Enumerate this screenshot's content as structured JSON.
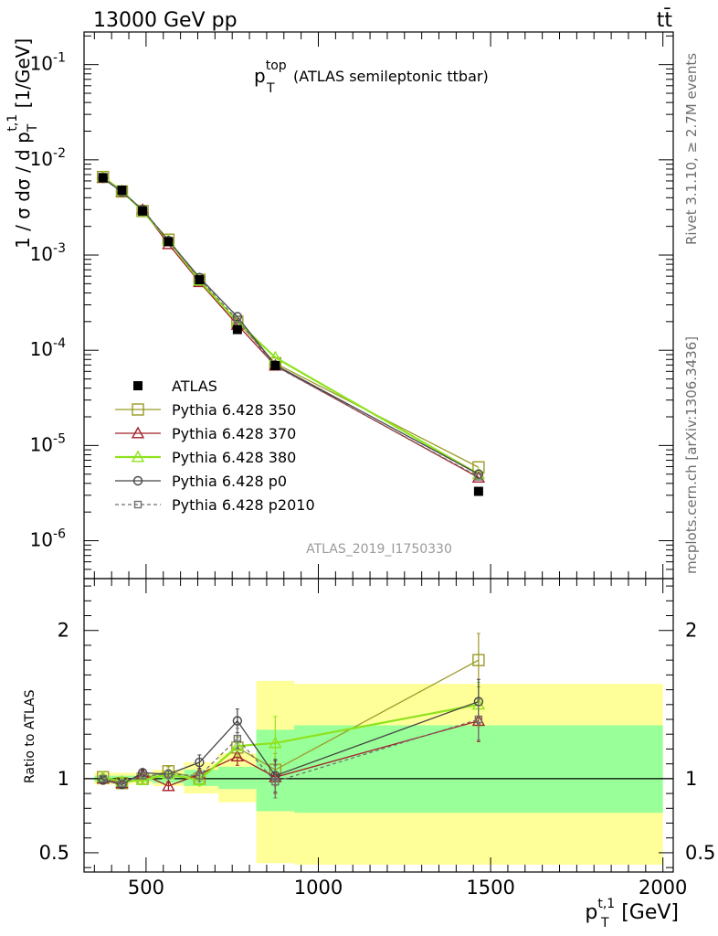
{
  "header": {
    "left": "13000 GeV pp",
    "right": "tt̄"
  },
  "side_labels": {
    "rivet": "Rivet 3.1.10, ≥ 2.7M events",
    "mcplots": "mcplots.cern.ch [arXiv:1306.3436]"
  },
  "watermark": "ATLAS_2019_I1750330",
  "colors": {
    "atlas": "#000000",
    "p350": "#9a9a24",
    "p370": "#a3202a",
    "p380": "#8fe21e",
    "p0": "#444444",
    "p2010": "#6e6e6e",
    "band_total": "#ffff99",
    "band_stat": "#99ff99"
  },
  "chart_data": [
    {
      "type": "scatter",
      "title_main": "p",
      "title_sup": "top",
      "title_sub": "T",
      "title_rest": "(ATLAS semileptonic ttbar)",
      "ylabel": "1 / σ dσ / d p_T^{t,1} [1/GeV]",
      "yscale": "log",
      "ylim": [
        4e-07,
        0.22
      ],
      "xlim": [
        320,
        2030
      ],
      "y_tick_labels": [
        "10^-6",
        "10^-5",
        "10^-4",
        "10^-3",
        "10^-2",
        "10^-1"
      ],
      "legend_position": "lower-left",
      "series": [
        {
          "name": "ATLAS",
          "marker": "square-filled",
          "x": [
            375,
            430,
            490,
            565,
            655,
            765,
            875,
            1465
          ],
          "values": [
            0.0065,
            0.0048,
            0.0029,
            0.00138,
            0.00055,
            0.000165,
            6.9e-05,
            3.3e-06
          ]
        },
        {
          "name": "Pythia 6.428 350",
          "marker": "square-open",
          "x": [
            375,
            430,
            490,
            565,
            655,
            765,
            875,
            1465
          ],
          "values": [
            0.0066,
            0.00465,
            0.0029,
            0.00145,
            0.00055,
            0.0002,
            7.3e-05,
            5.9e-06
          ]
        },
        {
          "name": "Pythia 6.428 370",
          "marker": "triangle-open",
          "x": [
            375,
            430,
            490,
            565,
            655,
            765,
            875,
            1465
          ],
          "values": [
            0.0065,
            0.00465,
            0.00298,
            0.0013,
            0.00052,
            0.000185,
            6.9e-05,
            4.6e-06
          ]
        },
        {
          "name": "Pythia 6.428 380",
          "marker": "triangle-open",
          "x": [
            375,
            430,
            490,
            565,
            655,
            765,
            875,
            1465
          ],
          "values": [
            0.0066,
            0.0047,
            0.0029,
            0.00142,
            0.00054,
            0.0002,
            8.4e-05,
            5e-06
          ]
        },
        {
          "name": "Pythia 6.428 p0",
          "marker": "circle-open",
          "x": [
            375,
            430,
            490,
            565,
            655,
            765,
            875,
            1465
          ],
          "values": [
            0.0064,
            0.0046,
            0.003,
            0.00142,
            0.00058,
            0.000225,
            7e-05,
            5e-06
          ]
        },
        {
          "name": "Pythia 6.428 p2010",
          "marker": "square-open-dashed",
          "x": [
            375,
            430,
            490,
            565,
            655,
            765,
            875,
            1465
          ],
          "values": [
            0.0065,
            0.00465,
            0.00296,
            0.00142,
            0.00056,
            0.00021,
            6.8e-05,
            4.7e-06
          ]
        }
      ]
    },
    {
      "type": "line",
      "ylabel": "Ratio to ATLAS",
      "xlabel_main": "p",
      "xlabel_sup": "t,1",
      "xlabel_sub": "T",
      "xlabel_unit": "[GeV]",
      "xlim": [
        320,
        2030
      ],
      "ylim": [
        0.37,
        2.35
      ],
      "reference_line": 1,
      "x_ticks": [
        500,
        1000,
        1500,
        2000
      ],
      "y_ticks": [
        0.5,
        1,
        2
      ],
      "uncertainty_bands": [
        {
          "x_edges": [
            350,
            400
          ],
          "total": [
            0.96,
            1.04
          ],
          "stat": [
            0.98,
            1.02
          ]
        },
        {
          "x_edges": [
            400,
            460
          ],
          "total": [
            0.96,
            1.04
          ],
          "stat": [
            0.98,
            1.02
          ]
        },
        {
          "x_edges": [
            460,
            520
          ],
          "total": [
            0.97,
            1.04
          ],
          "stat": [
            0.98,
            1.02
          ]
        },
        {
          "x_edges": [
            520,
            610
          ],
          "total": [
            0.95,
            1.06
          ],
          "stat": [
            0.97,
            1.03
          ]
        },
        {
          "x_edges": [
            610,
            710
          ],
          "total": [
            0.9,
            1.11
          ],
          "stat": [
            0.95,
            1.06
          ]
        },
        {
          "x_edges": [
            710,
            820
          ],
          "total": [
            0.84,
            1.17
          ],
          "stat": [
            0.93,
            1.08
          ]
        },
        {
          "x_edges": [
            820,
            930
          ],
          "total": [
            0.43,
            1.66
          ],
          "stat": [
            0.78,
            1.33
          ]
        },
        {
          "x_edges": [
            930,
            2000
          ],
          "total": [
            0.42,
            1.64
          ],
          "stat": [
            0.77,
            1.36
          ]
        }
      ],
      "series": [
        {
          "name": "Pythia 6.428 350",
          "x": [
            375,
            430,
            490,
            565,
            655,
            765,
            875,
            1465
          ],
          "values": [
            1.01,
            0.97,
            1.0,
            1.05,
            1.0,
            1.21,
            1.06,
            1.8
          ],
          "err": [
            0.02,
            0.02,
            0.02,
            0.03,
            0.04,
            0.07,
            0.11,
            0.18
          ]
        },
        {
          "name": "Pythia 6.428 370",
          "x": [
            375,
            430,
            490,
            565,
            655,
            765,
            875,
            1465
          ],
          "values": [
            1.0,
            0.97,
            1.03,
            0.95,
            1.03,
            1.15,
            1.01,
            1.39
          ],
          "err": [
            0.02,
            0.02,
            0.02,
            0.03,
            0.04,
            0.06,
            0.11,
            0.14
          ]
        },
        {
          "name": "Pythia 6.428 380",
          "x": [
            375,
            430,
            490,
            565,
            655,
            765,
            875,
            1465
          ],
          "values": [
            1.01,
            0.98,
            0.99,
            1.03,
            0.99,
            1.22,
            1.24,
            1.5
          ],
          "err": [
            0.02,
            0.02,
            0.02,
            0.03,
            0.04,
            0.07,
            0.18,
            0.15
          ]
        },
        {
          "name": "Pythia 6.428 p0",
          "x": [
            375,
            430,
            490,
            565,
            655,
            765,
            875,
            1465
          ],
          "values": [
            0.99,
            0.96,
            1.04,
            1.03,
            1.11,
            1.39,
            1.02,
            1.52
          ],
          "err": [
            0.02,
            0.02,
            0.02,
            0.03,
            0.05,
            0.08,
            0.11,
            0.15
          ]
        },
        {
          "name": "Pythia 6.428 p2010",
          "x": [
            375,
            430,
            490,
            565,
            655,
            765,
            875,
            1465
          ],
          "values": [
            1.0,
            0.97,
            1.02,
            1.03,
            1.02,
            1.27,
            0.98,
            1.4
          ],
          "err": [
            0.02,
            0.02,
            0.02,
            0.03,
            0.04,
            0.07,
            0.11,
            0.14
          ]
        }
      ]
    }
  ]
}
